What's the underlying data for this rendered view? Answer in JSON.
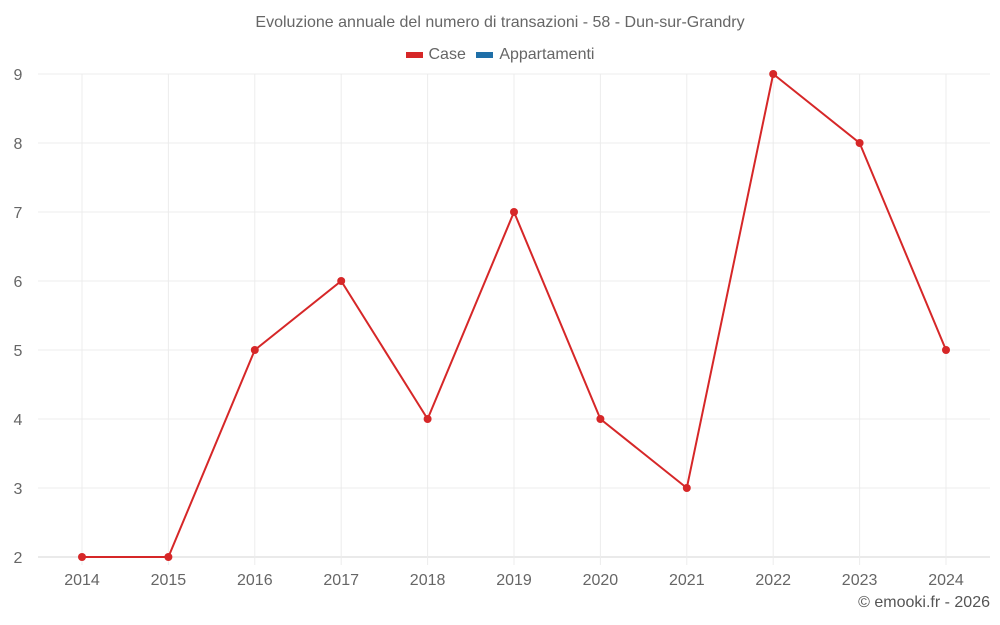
{
  "header": {
    "title": "Evoluzione annuale del numero di transazioni - 58 - Dun-sur-Grandry"
  },
  "legend": [
    {
      "label": "Case",
      "color": "#d62728"
    },
    {
      "label": "Appartamenti",
      "color": "#1f6fa8"
    }
  ],
  "footer": {
    "credit": "© emooki.fr - 2026"
  },
  "chart_data": {
    "type": "line",
    "title": "Evoluzione annuale del numero di transazioni - 58 - Dun-sur-Grandry",
    "xlabel": "",
    "ylabel": "",
    "categories": [
      "2014",
      "2015",
      "2016",
      "2017",
      "2018",
      "2019",
      "2020",
      "2021",
      "2022",
      "2023",
      "2024"
    ],
    "series": [
      {
        "name": "Case",
        "color": "#d62728",
        "values": [
          2,
          2,
          5,
          6,
          4,
          7,
          4,
          3,
          9,
          8,
          5
        ]
      },
      {
        "name": "Appartamenti",
        "color": "#1f6fa8",
        "values": []
      }
    ],
    "ylim": [
      2,
      9
    ],
    "yticks": [
      2,
      3,
      4,
      5,
      6,
      7,
      8,
      9
    ],
    "grid": true,
    "legend_position": "top"
  }
}
